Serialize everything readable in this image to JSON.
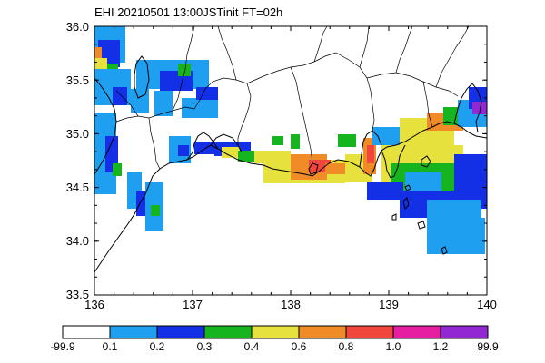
{
  "title": "EHI 20210501 13:00JSTinit FT=02h",
  "y_ticks": [
    "36.0",
    "35.5",
    "35.0",
    "34.5",
    "34.0",
    "33.5"
  ],
  "x_ticks": [
    "136",
    "137",
    "138",
    "139",
    "140"
  ],
  "colorbar": {
    "labels": [
      "-99.9",
      "0.1",
      "0.2",
      "0.3",
      "0.4",
      "0.6",
      "0.8",
      "1.0",
      "1.2",
      "99.9"
    ],
    "colors": [
      "#ffffff",
      "#1e9ff0",
      "#1430e6",
      "#16b41e",
      "#e6e13c",
      "#f08c28",
      "#f0463c",
      "#e61ea0",
      "#9128d2"
    ]
  },
  "colors": {
    "land": "#ffffff",
    "coast": "#000000",
    "border": "#000000"
  }
}
